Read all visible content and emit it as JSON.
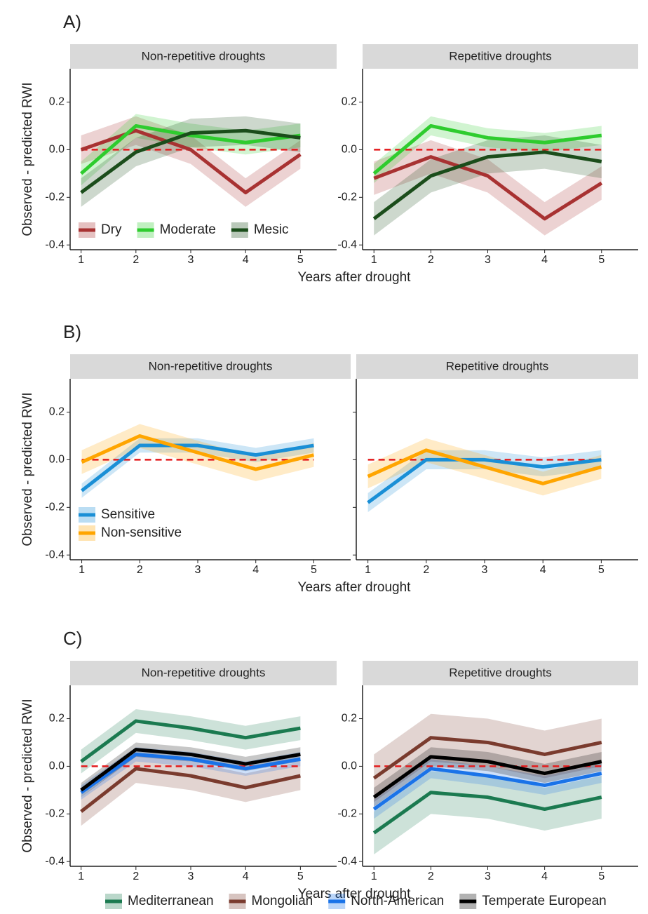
{
  "chart_data": [
    {
      "type": "line",
      "label": "A)",
      "ylabel": "Observed - predicted RWI",
      "xlabel": "Years after drought",
      "x": [
        1,
        2,
        3,
        4,
        5
      ],
      "xticks": [
        1,
        2,
        3,
        4,
        5
      ],
      "xlim": [
        0.8,
        5.2
      ],
      "ylim": [
        -0.42,
        0.34
      ],
      "yticks": [
        -0.4,
        -0.2,
        {
          "value": 0,
          "label": "0.0"
        },
        0.2
      ],
      "hline": 0,
      "shared_y": false,
      "legend": "bottom-left",
      "legend_direction": "horizontal",
      "facets": [
        {
          "title": "Non-repetitive droughts",
          "series": [
            {
              "name": "Dry",
              "color": "#a83232",
              "values": [
                0.0,
                0.08,
                0.0,
                -0.18,
                -0.02
              ],
              "lower": [
                -0.06,
                0.02,
                -0.06,
                -0.24,
                -0.08
              ],
              "upper": [
                0.06,
                0.14,
                0.06,
                -0.12,
                0.04
              ]
            },
            {
              "name": "Moderate",
              "color": "#2ecc2e",
              "values": [
                -0.1,
                0.1,
                0.06,
                0.03,
                0.06
              ],
              "lower": [
                -0.15,
                0.05,
                0.01,
                -0.02,
                0.01
              ],
              "upper": [
                -0.05,
                0.15,
                0.11,
                0.08,
                0.11
              ]
            },
            {
              "name": "Mesic",
              "color": "#1b4d1b",
              "values": [
                -0.18,
                -0.01,
                0.07,
                0.08,
                0.05
              ],
              "lower": [
                -0.24,
                -0.07,
                0.01,
                0.02,
                -0.01
              ],
              "upper": [
                -0.12,
                0.05,
                0.13,
                0.14,
                0.11
              ]
            }
          ]
        },
        {
          "title": "Repetitive droughts",
          "series": [
            {
              "name": "Dry",
              "color": "#a83232",
              "values": [
                -0.12,
                -0.03,
                -0.11,
                -0.29,
                -0.14
              ],
              "lower": [
                -0.19,
                -0.1,
                -0.18,
                -0.36,
                -0.21
              ],
              "upper": [
                -0.05,
                0.04,
                -0.04,
                -0.22,
                -0.07
              ]
            },
            {
              "name": "Moderate",
              "color": "#2ecc2e",
              "values": [
                -0.1,
                0.1,
                0.05,
                0.03,
                0.06
              ],
              "lower": [
                -0.14,
                0.06,
                0.01,
                -0.01,
                0.02
              ],
              "upper": [
                -0.06,
                0.14,
                0.09,
                0.07,
                0.1
              ]
            },
            {
              "name": "Mesic",
              "color": "#1b4d1b",
              "values": [
                -0.29,
                -0.11,
                -0.03,
                -0.01,
                -0.05
              ],
              "lower": [
                -0.36,
                -0.18,
                -0.1,
                -0.08,
                -0.12
              ],
              "upper": [
                -0.22,
                -0.04,
                0.04,
                0.06,
                0.02
              ]
            }
          ]
        }
      ]
    },
    {
      "type": "line",
      "label": "B)",
      "ylabel": "Observed - predicted RWI",
      "xlabel": "Years after drought",
      "x": [
        1,
        2,
        3,
        4,
        5
      ],
      "xticks": [
        1,
        2,
        3,
        4,
        5
      ],
      "xlim": [
        0.8,
        5.2
      ],
      "ylim": [
        -0.42,
        0.34
      ],
      "yticks": [
        -0.4,
        -0.2,
        {
          "value": 0,
          "label": "0.0"
        },
        0.2
      ],
      "hline": 0,
      "shared_y": true,
      "legend": "bottom-left",
      "legend_direction": "vertical",
      "facets": [
        {
          "title": "Non-repetitive droughts",
          "series": [
            {
              "name": "Sensitive",
              "color": "#1a8fd6",
              "values": [
                -0.13,
                0.06,
                0.06,
                0.02,
                0.06
              ],
              "lower": [
                -0.16,
                0.03,
                0.03,
                -0.01,
                0.03
              ],
              "upper": [
                -0.1,
                0.09,
                0.09,
                0.05,
                0.09
              ]
            },
            {
              "name": "Non-sensitive",
              "color": "#ffa500",
              "values": [
                -0.01,
                0.1,
                0.03,
                -0.04,
                0.02
              ],
              "lower": [
                -0.06,
                0.05,
                -0.02,
                -0.09,
                -0.03
              ],
              "upper": [
                0.04,
                0.15,
                0.08,
                0.01,
                0.07
              ]
            }
          ]
        },
        {
          "title": "Repetitive droughts",
          "series": [
            {
              "name": "Sensitive",
              "color": "#1a8fd6",
              "values": [
                -0.18,
                0.0,
                0.0,
                -0.03,
                0.0
              ],
              "lower": [
                -0.22,
                -0.04,
                -0.04,
                -0.07,
                -0.04
              ],
              "upper": [
                -0.14,
                0.04,
                0.04,
                0.01,
                0.04
              ]
            },
            {
              "name": "Non-sensitive",
              "color": "#ffa500",
              "values": [
                -0.07,
                0.04,
                -0.03,
                -0.1,
                -0.03
              ],
              "lower": [
                -0.12,
                -0.01,
                -0.08,
                -0.15,
                -0.08
              ],
              "upper": [
                -0.02,
                0.09,
                0.02,
                -0.05,
                0.02
              ]
            }
          ]
        }
      ]
    },
    {
      "type": "line",
      "label": "C)",
      "ylabel": "Observed - predicted RWI",
      "xlabel": "Years after drought",
      "x": [
        1,
        2,
        3,
        4,
        5
      ],
      "xticks": [
        1,
        2,
        3,
        4,
        5
      ],
      "xlim": [
        0.8,
        5.2
      ],
      "ylim": [
        -0.42,
        0.34
      ],
      "yticks": [
        -0.4,
        -0.2,
        {
          "value": 0,
          "label": "0.0"
        },
        0.2
      ],
      "hline": 0,
      "shared_y": false,
      "legend": "bottom",
      "legend_direction": "horizontal",
      "facets": [
        {
          "title": "Non-repetitive droughts",
          "series": [
            {
              "name": "Mediterranean",
              "color": "#1b7a50",
              "values": [
                0.02,
                0.19,
                0.16,
                0.12,
                0.16
              ],
              "lower": [
                -0.03,
                0.14,
                0.11,
                0.07,
                0.11
              ],
              "upper": [
                0.07,
                0.24,
                0.21,
                0.17,
                0.21
              ]
            },
            {
              "name": "Mongolian",
              "color": "#7a3b2e",
              "values": [
                -0.19,
                -0.01,
                -0.04,
                -0.09,
                -0.04
              ],
              "lower": [
                -0.25,
                -0.07,
                -0.1,
                -0.15,
                -0.1
              ],
              "upper": [
                -0.13,
                0.05,
                0.02,
                -0.03,
                0.02
              ]
            },
            {
              "name": "North-American",
              "color": "#1a73e8",
              "values": [
                -0.11,
                0.05,
                0.03,
                -0.01,
                0.03
              ],
              "lower": [
                -0.14,
                0.02,
                0.0,
                -0.04,
                0.0
              ],
              "upper": [
                -0.08,
                0.08,
                0.06,
                0.02,
                0.06
              ]
            },
            {
              "name": "Temperate European",
              "color": "#000000",
              "values": [
                -0.1,
                0.07,
                0.05,
                0.01,
                0.05
              ],
              "lower": [
                -0.13,
                0.04,
                0.02,
                -0.02,
                0.02
              ],
              "upper": [
                -0.07,
                0.1,
                0.08,
                0.04,
                0.08
              ]
            }
          ]
        },
        {
          "title": "Repetitive droughts",
          "series": [
            {
              "name": "Mediterranean",
              "color": "#1b7a50",
              "values": [
                -0.28,
                -0.11,
                -0.13,
                -0.18,
                -0.13
              ],
              "lower": [
                -0.37,
                -0.2,
                -0.22,
                -0.27,
                -0.22
              ],
              "upper": [
                -0.19,
                -0.02,
                -0.04,
                -0.09,
                -0.04
              ]
            },
            {
              "name": "Mongolian",
              "color": "#7a3b2e",
              "values": [
                -0.05,
                0.12,
                0.1,
                0.05,
                0.1
              ],
              "lower": [
                -0.15,
                0.02,
                0.0,
                -0.05,
                0.0
              ],
              "upper": [
                0.05,
                0.22,
                0.2,
                0.15,
                0.2
              ]
            },
            {
              "name": "North-American",
              "color": "#1a73e8",
              "values": [
                -0.18,
                -0.01,
                -0.04,
                -0.08,
                -0.03
              ],
              "lower": [
                -0.22,
                -0.05,
                -0.08,
                -0.12,
                -0.07
              ],
              "upper": [
                -0.14,
                0.03,
                0.0,
                -0.04,
                0.01
              ]
            },
            {
              "name": "Temperate European",
              "color": "#000000",
              "values": [
                -0.13,
                0.04,
                0.02,
                -0.03,
                0.02
              ],
              "lower": [
                -0.17,
                0.0,
                -0.02,
                -0.07,
                -0.02
              ],
              "upper": [
                -0.09,
                0.08,
                0.06,
                0.01,
                0.06
              ]
            }
          ]
        }
      ]
    }
  ]
}
